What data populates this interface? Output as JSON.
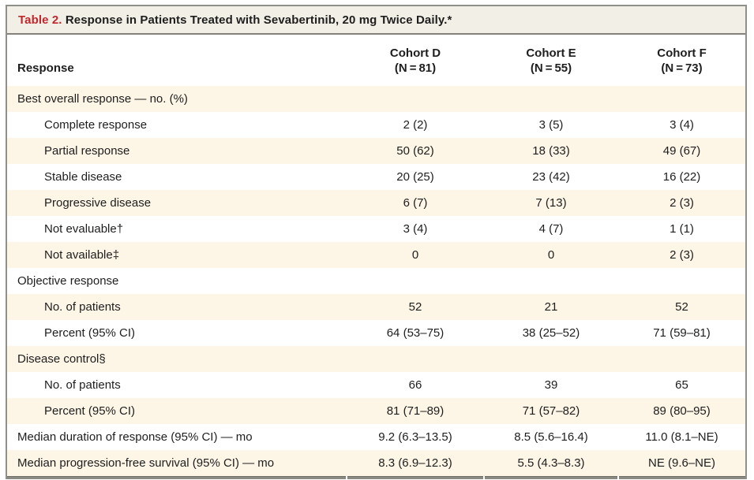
{
  "table": {
    "title_label": "Table 2.",
    "title_text": " Response in Patients Treated with Sevabertinib, 20 mg Twice Daily.*",
    "header": {
      "response": "Response",
      "cohorts": [
        {
          "name": "Cohort D",
          "n": "(N = 81)"
        },
        {
          "name": "Cohort E",
          "n": "(N = 55)"
        },
        {
          "name": "Cohort F",
          "n": "(N = 73)"
        }
      ]
    },
    "rows": [
      {
        "label": "Best overall response — no. (%)",
        "indent": false,
        "values": [
          "",
          "",
          ""
        ]
      },
      {
        "label": "Complete response",
        "indent": true,
        "values": [
          "2 (2)",
          "3 (5)",
          "3 (4)"
        ]
      },
      {
        "label": "Partial response",
        "indent": true,
        "values": [
          "50 (62)",
          "18 (33)",
          "49 (67)"
        ]
      },
      {
        "label": "Stable disease",
        "indent": true,
        "values": [
          "20 (25)",
          "23 (42)",
          "16 (22)"
        ]
      },
      {
        "label": "Progressive disease",
        "indent": true,
        "values": [
          "6 (7)",
          "7 (13)",
          "2 (3)"
        ]
      },
      {
        "label": "Not evaluable†",
        "indent": true,
        "values": [
          "3 (4)",
          "4 (7)",
          "1 (1)"
        ]
      },
      {
        "label": "Not available‡",
        "indent": true,
        "values": [
          "0",
          "0",
          "2 (3)"
        ]
      },
      {
        "label": "Objective response",
        "indent": false,
        "values": [
          "",
          "",
          ""
        ]
      },
      {
        "label": "No. of patients",
        "indent": true,
        "values": [
          "52",
          "21",
          "52"
        ]
      },
      {
        "label": "Percent (95% CI)",
        "indent": true,
        "values": [
          "64 (53–75)",
          "38 (25–52)",
          "71 (59–81)"
        ]
      },
      {
        "label": "Disease control§",
        "indent": false,
        "values": [
          "",
          "",
          ""
        ]
      },
      {
        "label": "No. of patients",
        "indent": true,
        "values": [
          "66",
          "39",
          "65"
        ]
      },
      {
        "label": "Percent (95% CI)",
        "indent": true,
        "values": [
          "81 (71–89)",
          "71 (57–82)",
          "89 (80–95)"
        ]
      },
      {
        "label": "Median duration of response (95% CI) — mo",
        "indent": false,
        "values": [
          "9.2 (6.3–13.5)",
          "8.5 (5.6–16.4)",
          "11.0 (8.1–NE)"
        ]
      },
      {
        "label": "Median progression-free survival (95% CI) — mo",
        "indent": false,
        "values": [
          "8.3 (6.9–12.3)",
          "5.5 (4.3–8.3)",
          "NE (9.6–NE)"
        ]
      }
    ],
    "colors": {
      "title_accent": "#c1272d",
      "title_bar_bg": "#f2efe6",
      "shaded_row_bg": "#fdf5e6",
      "border": "#90908a",
      "text": "#1e1e1e"
    }
  }
}
